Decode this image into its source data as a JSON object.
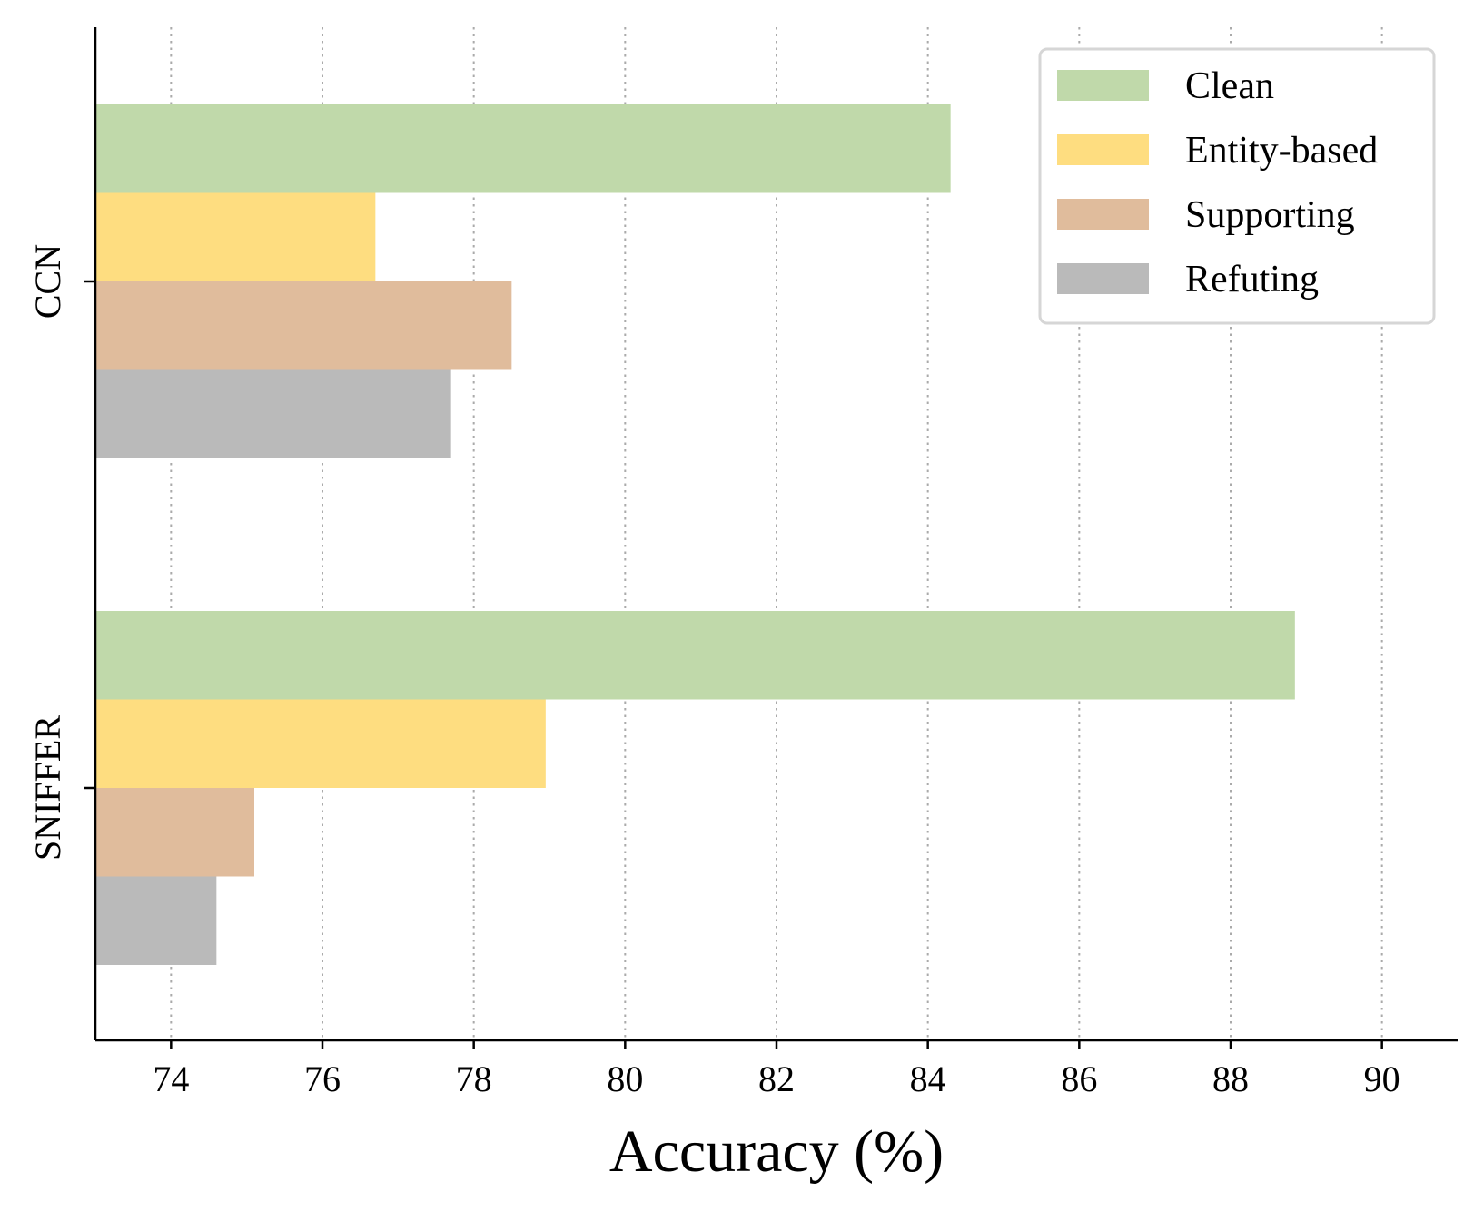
{
  "chart_data": {
    "type": "bar",
    "orientation": "horizontal",
    "categories": [
      "CCN",
      "SNIFFER"
    ],
    "series": [
      {
        "name": "Clean",
        "values": [
          84.3,
          88.85
        ],
        "color": "#c0d9aa"
      },
      {
        "name": "Entity-based",
        "values": [
          76.7,
          78.95
        ],
        "color": "#fedd80"
      },
      {
        "name": "Supporting",
        "values": [
          78.5,
          75.1
        ],
        "color": "#e0bc9c"
      },
      {
        "name": "Refuting",
        "values": [
          77.7,
          74.6
        ],
        "color": "#bababa"
      }
    ],
    "xlabel": "Accuracy (%)",
    "ylabel": "",
    "title": "",
    "xlim": [
      73,
      91
    ],
    "xticks": [
      "74",
      "76",
      "78",
      "80",
      "82",
      "84",
      "86",
      "88",
      "90"
    ],
    "grid": "vertical dotted",
    "legend_position": "top-right"
  }
}
